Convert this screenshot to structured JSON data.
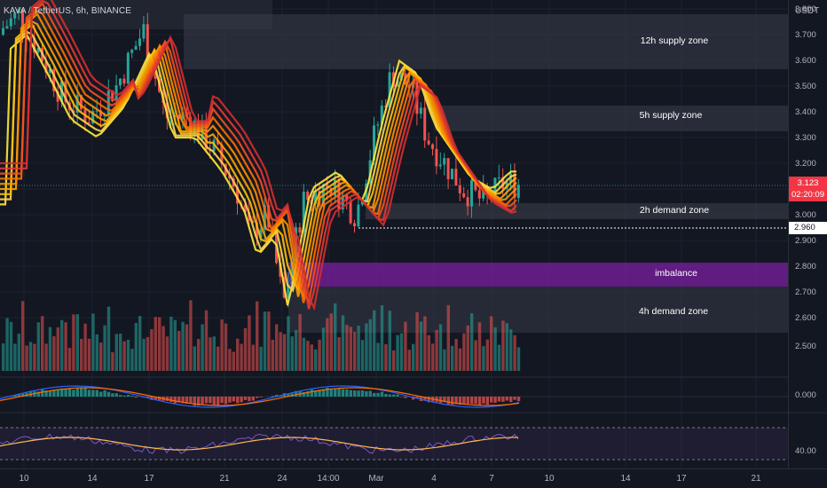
{
  "header": {
    "symbol": "KAVA / TetherUS, 6h, BINANCE",
    "currency": "USDT"
  },
  "price_axis": {
    "labels": [
      "3.800",
      "3.700",
      "3.600",
      "3.500",
      "3.400",
      "3.300",
      "3.200",
      "3.000",
      "2.900",
      "2.800",
      "2.700",
      "2.600",
      "2.500"
    ],
    "current_price": "3.123",
    "countdown": "02:20:09",
    "line_level": "2.960",
    "last_color": "#f23645"
  },
  "indicator_axis": {
    "macd_label": "0.000",
    "rsi_label": "40.00"
  },
  "time_axis": {
    "labels": [
      "10",
      "14",
      "17",
      "21",
      "24",
      "14:00",
      "Mar",
      "4",
      "7",
      "10",
      "14",
      "17",
      "21"
    ]
  },
  "zones": [
    {
      "label": "12h supply zone",
      "color": "#ffffff"
    },
    {
      "label": "5h supply zone",
      "color": "#ffffff"
    },
    {
      "label": "2h demand zone",
      "color": "#ffffff"
    },
    {
      "label": "imbalance",
      "color": "#9c27b0"
    },
    {
      "label": "4h demand zone",
      "color": "#ffffff"
    }
  ],
  "colors": {
    "background": "#131722",
    "up": "#26a69a",
    "down": "#ef5350",
    "rsi_line": "#7e57c2",
    "rsi_ma": "#ffb74d",
    "macd_line": "#2962ff",
    "signal_line": "#ff6d00"
  }
}
